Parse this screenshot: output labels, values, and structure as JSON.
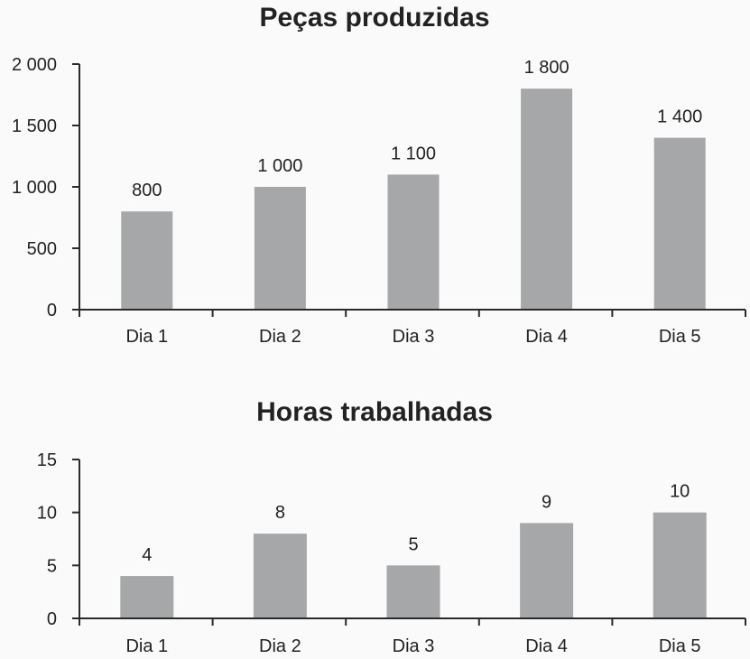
{
  "colors": {
    "bar": "#a5a7a9",
    "axis": "#2a2a2a",
    "text": "#222222"
  },
  "chart_data": [
    {
      "type": "bar",
      "title": "Peças produzidas",
      "categories": [
        "Dia 1",
        "Dia 2",
        "Dia 3",
        "Dia 4",
        "Dia 5"
      ],
      "values": [
        800,
        1000,
        1100,
        1800,
        1400
      ],
      "data_labels": [
        "800",
        "1 000",
        "1 100",
        "1 800",
        "1 400"
      ],
      "yticks": [
        0,
        500,
        1000,
        1500,
        2000
      ],
      "ytick_labels": [
        "0",
        "500",
        "1 000",
        "1 500",
        "2 000"
      ],
      "ylim": [
        0,
        2000
      ],
      "xlabel": "",
      "ylabel": ""
    },
    {
      "type": "bar",
      "title": "Horas trabalhadas",
      "categories": [
        "Dia 1",
        "Dia 2",
        "Dia 3",
        "Dia 4",
        "Dia 5"
      ],
      "values": [
        4,
        8,
        5,
        9,
        10
      ],
      "data_labels": [
        "4",
        "8",
        "5",
        "9",
        "10"
      ],
      "yticks": [
        0,
        5,
        10,
        15
      ],
      "ytick_labels": [
        "0",
        "5",
        "10",
        "15"
      ],
      "ylim": [
        0,
        15
      ],
      "xlabel": "",
      "ylabel": ""
    }
  ]
}
